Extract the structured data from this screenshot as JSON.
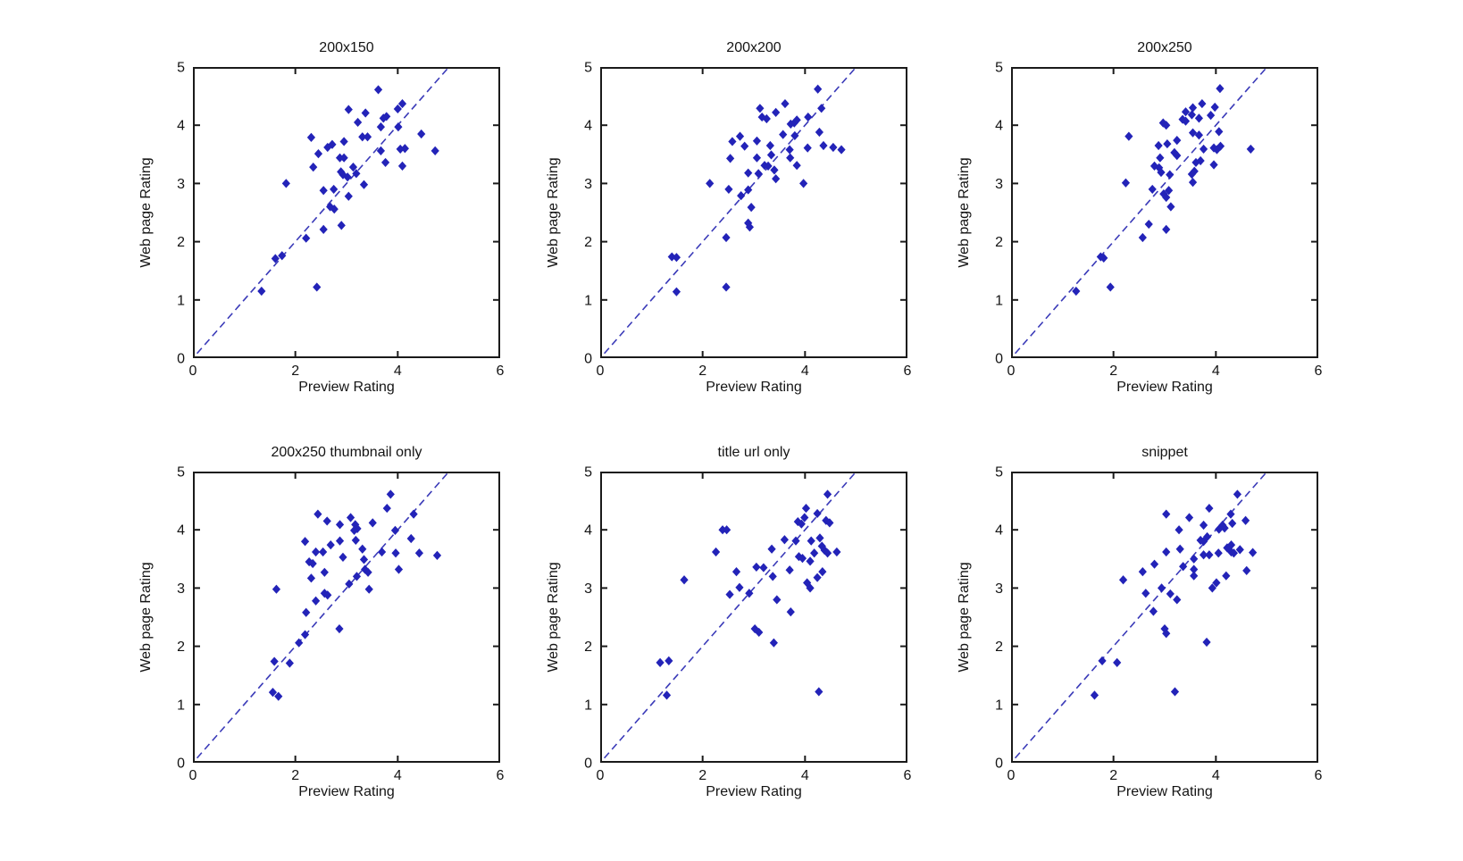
{
  "figure": {
    "background": "#ffffff",
    "marker_color": "#2323b8",
    "identity_line_color": "#3a3ab8",
    "axis_color": "#1a1a1a",
    "tick_label_color": "#141414"
  },
  "chart_data": [
    {
      "type": "scatter",
      "title": "200x150",
      "xlabel": "Preview Rating",
      "ylabel": "Web page Rating",
      "xlim": [
        0,
        6
      ],
      "ylim": [
        0,
        5
      ],
      "xticks": [
        0,
        2,
        4,
        6
      ],
      "yticks": [
        0,
        1,
        2,
        3,
        4,
        5
      ],
      "grid": false,
      "marker": "diamond",
      "identity_line": {
        "from": [
          0.08,
          0.08
        ],
        "to": [
          5,
          5
        ],
        "style": "dashed"
      },
      "points": [
        [
          3.62,
          4.61
        ],
        [
          4.09,
          4.37
        ],
        [
          3.04,
          4.27
        ],
        [
          4.0,
          4.28
        ],
        [
          3.37,
          4.21
        ],
        [
          3.22,
          4.05
        ],
        [
          3.72,
          4.12
        ],
        [
          3.78,
          4.15
        ],
        [
          3.67,
          3.97
        ],
        [
          4.01,
          3.97
        ],
        [
          4.46,
          3.85
        ],
        [
          2.31,
          3.79
        ],
        [
          3.31,
          3.8
        ],
        [
          3.41,
          3.8
        ],
        [
          2.95,
          3.72
        ],
        [
          2.72,
          3.67
        ],
        [
          2.63,
          3.62
        ],
        [
          2.45,
          3.51
        ],
        [
          2.87,
          3.44
        ],
        [
          2.95,
          3.44
        ],
        [
          3.67,
          3.56
        ],
        [
          4.05,
          3.59
        ],
        [
          4.14,
          3.6
        ],
        [
          4.73,
          3.56
        ],
        [
          3.76,
          3.36
        ],
        [
          4.09,
          3.3
        ],
        [
          2.35,
          3.28
        ],
        [
          3.13,
          3.28
        ],
        [
          3.19,
          3.17
        ],
        [
          2.93,
          3.15
        ],
        [
          3.02,
          3.11
        ],
        [
          2.89,
          3.2
        ],
        [
          1.82,
          3.0
        ],
        [
          3.34,
          2.98
        ],
        [
          2.55,
          2.88
        ],
        [
          2.75,
          2.9
        ],
        [
          3.04,
          2.78
        ],
        [
          2.68,
          2.6
        ],
        [
          2.76,
          2.56
        ],
        [
          2.9,
          2.28
        ],
        [
          2.55,
          2.21
        ],
        [
          2.21,
          2.06
        ],
        [
          1.74,
          1.76
        ],
        [
          1.61,
          1.71
        ],
        [
          1.34,
          1.15
        ],
        [
          2.42,
          1.22
        ]
      ]
    },
    {
      "type": "scatter",
      "title": "200x200",
      "xlabel": "Preview Rating",
      "ylabel": "Web page Rating",
      "xlim": [
        0,
        6
      ],
      "ylim": [
        0,
        5
      ],
      "xticks": [
        0,
        2,
        4,
        6
      ],
      "yticks": [
        0,
        1,
        2,
        3,
        4,
        5
      ],
      "grid": false,
      "marker": "diamond",
      "identity_line": {
        "from": [
          0.08,
          0.08
        ],
        "to": [
          5,
          5
        ],
        "style": "dashed"
      },
      "points": [
        [
          4.25,
          4.62
        ],
        [
          3.61,
          4.37
        ],
        [
          3.12,
          4.29
        ],
        [
          3.16,
          4.14
        ],
        [
          3.25,
          4.11
        ],
        [
          3.43,
          4.22
        ],
        [
          4.32,
          4.29
        ],
        [
          4.06,
          4.14
        ],
        [
          3.72,
          4.02
        ],
        [
          3.79,
          4.04
        ],
        [
          3.84,
          4.09
        ],
        [
          3.57,
          3.84
        ],
        [
          4.28,
          3.88
        ],
        [
          3.8,
          3.82
        ],
        [
          2.73,
          3.81
        ],
        [
          2.58,
          3.72
        ],
        [
          3.06,
          3.73
        ],
        [
          2.82,
          3.64
        ],
        [
          3.32,
          3.65
        ],
        [
          4.36,
          3.65
        ],
        [
          4.55,
          3.62
        ],
        [
          4.05,
          3.61
        ],
        [
          4.71,
          3.58
        ],
        [
          3.7,
          3.58
        ],
        [
          3.34,
          3.49
        ],
        [
          2.54,
          3.43
        ],
        [
          3.06,
          3.44
        ],
        [
          3.71,
          3.44
        ],
        [
          3.21,
          3.31
        ],
        [
          3.28,
          3.3
        ],
        [
          3.84,
          3.31
        ],
        [
          3.4,
          3.23
        ],
        [
          2.89,
          3.18
        ],
        [
          3.09,
          3.17
        ],
        [
          3.43,
          3.08
        ],
        [
          2.14,
          3.0
        ],
        [
          3.97,
          3.0
        ],
        [
          2.51,
          2.9
        ],
        [
          2.89,
          2.89
        ],
        [
          2.75,
          2.79
        ],
        [
          2.95,
          2.59
        ],
        [
          2.89,
          2.32
        ],
        [
          2.92,
          2.25
        ],
        [
          2.46,
          2.07
        ],
        [
          1.4,
          1.74
        ],
        [
          1.49,
          1.73
        ],
        [
          1.49,
          1.14
        ],
        [
          2.46,
          1.22
        ]
      ]
    },
    {
      "type": "scatter",
      "title": "200x250",
      "xlabel": "Preview Rating",
      "ylabel": "Web page Rating",
      "xlim": [
        0,
        6
      ],
      "ylim": [
        0,
        5
      ],
      "xticks": [
        0,
        2,
        4,
        6
      ],
      "yticks": [
        0,
        1,
        2,
        3,
        4,
        5
      ],
      "grid": false,
      "marker": "diamond",
      "identity_line": {
        "from": [
          0.08,
          0.08
        ],
        "to": [
          5,
          5
        ],
        "style": "dashed"
      },
      "points": [
        [
          4.08,
          4.63
        ],
        [
          3.73,
          4.37
        ],
        [
          3.55,
          4.3
        ],
        [
          3.98,
          4.31
        ],
        [
          3.41,
          4.23
        ],
        [
          3.35,
          4.1
        ],
        [
          3.41,
          4.07
        ],
        [
          3.53,
          4.18
        ],
        [
          3.9,
          4.17
        ],
        [
          3.67,
          4.12
        ],
        [
          2.97,
          4.04
        ],
        [
          3.03,
          4.0
        ],
        [
          2.3,
          3.81
        ],
        [
          3.55,
          3.87
        ],
        [
          3.67,
          3.83
        ],
        [
          4.06,
          3.89
        ],
        [
          3.24,
          3.74
        ],
        [
          3.05,
          3.68
        ],
        [
          2.88,
          3.65
        ],
        [
          3.76,
          3.59
        ],
        [
          3.96,
          3.61
        ],
        [
          4.09,
          3.64
        ],
        [
          4.02,
          3.58
        ],
        [
          4.68,
          3.59
        ],
        [
          3.19,
          3.53
        ],
        [
          3.24,
          3.48
        ],
        [
          2.91,
          3.44
        ],
        [
          2.8,
          3.3
        ],
        [
          2.89,
          3.27
        ],
        [
          3.61,
          3.36
        ],
        [
          3.7,
          3.39
        ],
        [
          3.96,
          3.32
        ],
        [
          3.58,
          3.21
        ],
        [
          3.53,
          3.16
        ],
        [
          2.93,
          3.19
        ],
        [
          3.1,
          3.15
        ],
        [
          2.24,
          3.01
        ],
        [
          3.55,
          3.02
        ],
        [
          2.76,
          2.9
        ],
        [
          3.08,
          2.88
        ],
        [
          2.98,
          2.82
        ],
        [
          3.03,
          2.76
        ],
        [
          3.12,
          2.6
        ],
        [
          2.69,
          2.3
        ],
        [
          3.03,
          2.21
        ],
        [
          2.57,
          2.07
        ],
        [
          1.75,
          1.74
        ],
        [
          1.81,
          1.72
        ],
        [
          1.27,
          1.15
        ],
        [
          1.94,
          1.22
        ]
      ]
    },
    {
      "type": "scatter",
      "title": "200x250 thumbnail only",
      "xlabel": "Preview Rating",
      "ylabel": "Web page Rating",
      "xlim": [
        0,
        6
      ],
      "ylim": [
        0,
        5
      ],
      "xticks": [
        0,
        2,
        4,
        6
      ],
      "yticks": [
        0,
        1,
        2,
        3,
        4,
        5
      ],
      "grid": false,
      "marker": "diamond",
      "identity_line": {
        "from": [
          0.08,
          0.08
        ],
        "to": [
          5,
          5
        ],
        "style": "dashed"
      },
      "points": [
        [
          3.86,
          4.61
        ],
        [
          3.79,
          4.37
        ],
        [
          2.44,
          4.27
        ],
        [
          3.08,
          4.21
        ],
        [
          4.31,
          4.27
        ],
        [
          2.62,
          4.15
        ],
        [
          2.87,
          4.09
        ],
        [
          3.17,
          4.09
        ],
        [
          3.21,
          4.02
        ],
        [
          3.51,
          4.12
        ],
        [
          3.15,
          3.99
        ],
        [
          3.95,
          3.99
        ],
        [
          2.19,
          3.8
        ],
        [
          2.87,
          3.81
        ],
        [
          3.18,
          3.82
        ],
        [
          2.69,
          3.74
        ],
        [
          3.31,
          3.67
        ],
        [
          4.26,
          3.85
        ],
        [
          2.4,
          3.62
        ],
        [
          2.54,
          3.62
        ],
        [
          2.93,
          3.53
        ],
        [
          3.34,
          3.49
        ],
        [
          3.69,
          3.62
        ],
        [
          3.96,
          3.6
        ],
        [
          4.42,
          3.6
        ],
        [
          4.77,
          3.56
        ],
        [
          2.27,
          3.45
        ],
        [
          2.34,
          3.42
        ],
        [
          2.31,
          3.17
        ],
        [
          2.57,
          3.27
        ],
        [
          3.2,
          3.2
        ],
        [
          3.36,
          3.32
        ],
        [
          3.42,
          3.27
        ],
        [
          4.02,
          3.32
        ],
        [
          3.05,
          3.07
        ],
        [
          3.44,
          2.98
        ],
        [
          1.63,
          2.98
        ],
        [
          2.57,
          2.91
        ],
        [
          2.63,
          2.88
        ],
        [
          2.4,
          2.78
        ],
        [
          2.21,
          2.58
        ],
        [
          2.86,
          2.3
        ],
        [
          2.19,
          2.2
        ],
        [
          2.07,
          2.06
        ],
        [
          1.59,
          1.74
        ],
        [
          1.89,
          1.71
        ],
        [
          1.56,
          1.21
        ],
        [
          1.67,
          1.14
        ]
      ]
    },
    {
      "type": "scatter",
      "title": "title url only",
      "xlabel": "Preview Rating",
      "ylabel": "Web page Rating",
      "xlim": [
        0,
        6
      ],
      "ylim": [
        0,
        5
      ],
      "xticks": [
        0,
        2,
        4,
        6
      ],
      "yticks": [
        0,
        1,
        2,
        3,
        4,
        5
      ],
      "grid": false,
      "marker": "diamond",
      "identity_line": {
        "from": [
          0.08,
          0.08
        ],
        "to": [
          5,
          5
        ],
        "style": "dashed"
      },
      "points": [
        [
          4.44,
          4.61
        ],
        [
          4.02,
          4.37
        ],
        [
          4.24,
          4.28
        ],
        [
          4.41,
          4.16
        ],
        [
          4.48,
          4.12
        ],
        [
          3.99,
          4.21
        ],
        [
          3.86,
          4.14
        ],
        [
          3.93,
          4.1
        ],
        [
          2.39,
          4.0
        ],
        [
          2.47,
          4.0
        ],
        [
          3.6,
          3.83
        ],
        [
          4.12,
          3.81
        ],
        [
          3.82,
          3.81
        ],
        [
          4.29,
          3.86
        ],
        [
          4.33,
          3.72
        ],
        [
          2.26,
          3.62
        ],
        [
          3.35,
          3.67
        ],
        [
          4.18,
          3.6
        ],
        [
          4.38,
          3.65
        ],
        [
          4.44,
          3.6
        ],
        [
          4.62,
          3.62
        ],
        [
          3.88,
          3.54
        ],
        [
          3.95,
          3.51
        ],
        [
          4.1,
          3.46
        ],
        [
          3.19,
          3.35
        ],
        [
          3.05,
          3.36
        ],
        [
          2.66,
          3.28
        ],
        [
          3.7,
          3.31
        ],
        [
          4.34,
          3.28
        ],
        [
          4.24,
          3.18
        ],
        [
          1.64,
          3.14
        ],
        [
          3.37,
          3.2
        ],
        [
          4.04,
          3.09
        ],
        [
          2.72,
          3.01
        ],
        [
          4.1,
          3.0
        ],
        [
          2.91,
          2.91
        ],
        [
          2.53,
          2.89
        ],
        [
          3.45,
          2.8
        ],
        [
          3.72,
          2.59
        ],
        [
          3.02,
          2.3
        ],
        [
          3.1,
          2.24
        ],
        [
          3.39,
          2.06
        ],
        [
          1.17,
          1.72
        ],
        [
          1.34,
          1.75
        ],
        [
          1.3,
          1.16
        ],
        [
          4.27,
          1.22
        ]
      ]
    },
    {
      "type": "scatter",
      "title": "snippet",
      "xlabel": "Preview Rating",
      "ylabel": "Web page Rating",
      "xlim": [
        0,
        6
      ],
      "ylim": [
        0,
        5
      ],
      "xticks": [
        0,
        2,
        4,
        6
      ],
      "yticks": [
        0,
        1,
        2,
        3,
        4,
        5
      ],
      "grid": false,
      "marker": "diamond",
      "identity_line": {
        "from": [
          0.08,
          0.08
        ],
        "to": [
          5,
          5
        ],
        "style": "dashed"
      },
      "points": [
        [
          4.42,
          4.61
        ],
        [
          3.87,
          4.37
        ],
        [
          3.03,
          4.27
        ],
        [
          3.48,
          4.21
        ],
        [
          4.29,
          4.27
        ],
        [
          4.58,
          4.16
        ],
        [
          4.32,
          4.11
        ],
        [
          3.76,
          4.08
        ],
        [
          4.13,
          4.08
        ],
        [
          4.17,
          4.03
        ],
        [
          4.06,
          4.01
        ],
        [
          3.28,
          4.0
        ],
        [
          3.7,
          3.82
        ],
        [
          3.76,
          3.8
        ],
        [
          3.83,
          3.88
        ],
        [
          3.3,
          3.67
        ],
        [
          3.03,
          3.62
        ],
        [
          4.3,
          3.74
        ],
        [
          4.3,
          3.62
        ],
        [
          4.35,
          3.6
        ],
        [
          4.47,
          3.66
        ],
        [
          4.72,
          3.61
        ],
        [
          4.22,
          3.69
        ],
        [
          3.76,
          3.57
        ],
        [
          3.87,
          3.57
        ],
        [
          4.05,
          3.6
        ],
        [
          3.57,
          3.5
        ],
        [
          3.36,
          3.37
        ],
        [
          2.8,
          3.41
        ],
        [
          3.57,
          3.32
        ],
        [
          3.57,
          3.21
        ],
        [
          4.2,
          3.21
        ],
        [
          4.6,
          3.3
        ],
        [
          2.57,
          3.28
        ],
        [
          2.19,
          3.14
        ],
        [
          4.01,
          3.09
        ],
        [
          3.93,
          3.0
        ],
        [
          2.94,
          3.0
        ],
        [
          2.63,
          2.91
        ],
        [
          3.11,
          2.9
        ],
        [
          3.24,
          2.8
        ],
        [
          2.78,
          2.6
        ],
        [
          3.0,
          2.3
        ],
        [
          3.03,
          2.22
        ],
        [
          3.82,
          2.07
        ],
        [
          1.78,
          1.75
        ],
        [
          2.07,
          1.72
        ],
        [
          1.63,
          1.16
        ],
        [
          3.2,
          1.22
        ]
      ]
    }
  ]
}
